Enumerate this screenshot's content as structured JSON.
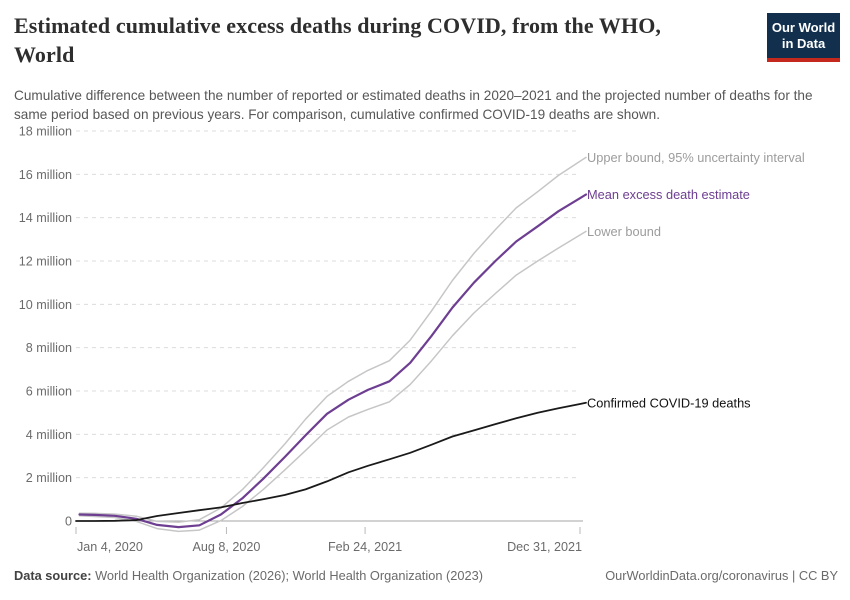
{
  "header": {
    "title": "Estimated cumulative excess deaths during COVID, from the WHO, World",
    "subtitle": "Cumulative difference between the number of reported or estimated deaths in 2020–2021 and the projected number of deaths for the same period based on previous years. For comparison, cumulative confirmed COVID-19 deaths are shown.",
    "logo": {
      "line1": "Our World",
      "line2": "in Data",
      "bg_color": "#12304E",
      "accent_color": "#C5281C"
    }
  },
  "chart_data": {
    "type": "line",
    "title": "Estimated cumulative excess deaths during COVID, from the WHO, World",
    "xlabel": "",
    "ylabel": "",
    "grid": "dashed-horizontal",
    "legend_position": "end-of-line-labels",
    "x_axis": {
      "range_days": [
        0,
        727
      ],
      "ticks": [
        {
          "day": 0,
          "label": "Jan 4, 2020"
        },
        {
          "day": 217,
          "label": "Aug 8, 2020"
        },
        {
          "day": 417,
          "label": "Feb 24, 2021"
        },
        {
          "day": 727,
          "label": "Dec 31, 2021"
        }
      ]
    },
    "y_axis": {
      "range": [
        0,
        18
      ],
      "unit": "million",
      "ticks": [
        {
          "value": 0,
          "label": "0"
        },
        {
          "value": 2,
          "label": "2 million"
        },
        {
          "value": 4,
          "label": "4 million"
        },
        {
          "value": 6,
          "label": "6 million"
        },
        {
          "value": 8,
          "label": "8 million"
        },
        {
          "value": 10,
          "label": "10 million"
        },
        {
          "value": 12,
          "label": "12 million"
        },
        {
          "value": 14,
          "label": "14 million"
        },
        {
          "value": 16,
          "label": "16 million"
        },
        {
          "value": 18,
          "label": "18 million"
        }
      ]
    },
    "series": [
      {
        "id": "upper-bound",
        "name": "Upper bound, 95% uncertainty interval",
        "color": "#C6C6C6",
        "label_color": "#9C9C9C",
        "days": [
          5,
          27,
          56,
          87,
          117,
          148,
          178,
          209,
          240,
          270,
          301,
          331,
          362,
          393,
          421,
          452,
          482,
          513,
          543,
          574,
          605,
          635,
          666,
          696,
          727
        ],
        "values": [
          0.36,
          0.35,
          0.32,
          0.22,
          -0.02,
          -0.05,
          0.06,
          0.6,
          1.45,
          2.45,
          3.55,
          4.7,
          5.75,
          6.45,
          6.95,
          7.4,
          8.35,
          9.7,
          11.1,
          12.35,
          13.45,
          14.45,
          15.2,
          15.95,
          16.6
        ]
      },
      {
        "id": "lower-bound",
        "name": "Lower bound",
        "color": "#C6C6C6",
        "label_color": "#9C9C9C",
        "days": [
          5,
          27,
          56,
          87,
          117,
          148,
          178,
          209,
          240,
          270,
          301,
          331,
          362,
          393,
          421,
          452,
          482,
          513,
          543,
          574,
          605,
          635,
          666,
          696,
          727
        ],
        "values": [
          0.24,
          0.21,
          0.16,
          -0.02,
          -0.35,
          -0.48,
          -0.42,
          0.02,
          0.67,
          1.45,
          2.35,
          3.25,
          4.2,
          4.8,
          5.15,
          5.5,
          6.3,
          7.4,
          8.55,
          9.6,
          10.5,
          11.35,
          12.0,
          12.6,
          13.2
        ]
      },
      {
        "id": "mean-estimate",
        "name": "Mean excess death estimate",
        "color": "#6D3E91",
        "label_color": "#6D3E91",
        "days": [
          5,
          27,
          56,
          87,
          117,
          148,
          178,
          209,
          240,
          270,
          301,
          331,
          362,
          393,
          421,
          452,
          482,
          513,
          543,
          574,
          605,
          635,
          666,
          696,
          727
        ],
        "values": [
          0.3,
          0.28,
          0.24,
          0.1,
          -0.18,
          -0.28,
          -0.2,
          0.3,
          1.05,
          1.95,
          2.95,
          3.95,
          4.95,
          5.6,
          6.05,
          6.45,
          7.3,
          8.55,
          9.85,
          11.0,
          12.0,
          12.9,
          13.6,
          14.3,
          14.9
        ]
      },
      {
        "id": "confirmed-deaths",
        "name": "Confirmed COVID-19 deaths",
        "color": "#1A1A1A",
        "label_color": "#111111",
        "days": [
          0,
          27,
          56,
          87,
          117,
          148,
          178,
          209,
          240,
          270,
          301,
          331,
          362,
          393,
          421,
          452,
          482,
          513,
          543,
          574,
          605,
          635,
          666,
          696,
          727
        ],
        "values": [
          0.0,
          0.0,
          0.01,
          0.04,
          0.23,
          0.37,
          0.5,
          0.63,
          0.83,
          1.0,
          1.2,
          1.46,
          1.83,
          2.25,
          2.55,
          2.85,
          3.15,
          3.52,
          3.9,
          4.18,
          4.47,
          4.74,
          5.0,
          5.2,
          5.4
        ]
      }
    ]
  },
  "footer": {
    "source_label": "Data source:",
    "source_text": " World Health Organization (2026); World Health Organization (2023)",
    "rights": "OurWorldinData.org/coronavirus | CC BY"
  }
}
